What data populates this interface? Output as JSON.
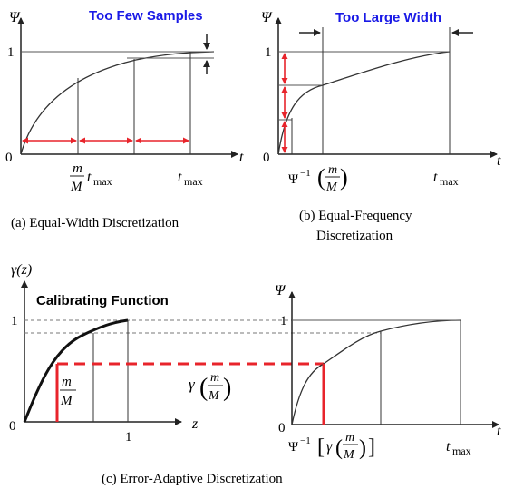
{
  "panel_a": {
    "callout": "Too Few Samples",
    "y_axis": "Ψ",
    "x_axis": "t",
    "origin": "0",
    "y_tick_1": "1",
    "frac_num": "m",
    "frac_den": "M",
    "tick_mid_sub": "t",
    "tick_mid_subscript": "max",
    "tick_right": "t",
    "tick_right_subscript": "max",
    "caption": "(a)  Equal-Width Discretization"
  },
  "panel_b": {
    "callout": "Too Large Width",
    "y_axis": "Ψ",
    "x_axis": "t",
    "origin": "0",
    "y_tick_1": "1",
    "tick_left_prefix": "Ψ",
    "tick_left_exp": "−1",
    "frac_num": "m",
    "frac_den": "M",
    "tick_right": "t",
    "tick_right_subscript": "max",
    "caption_line1": "(b) Equal-Frequency",
    "caption_line2": "Discretization"
  },
  "panel_c_left": {
    "y_axis": "γ(z)",
    "x_axis": "z",
    "origin": "0",
    "y_tick_1": "1",
    "x_tick_1": "1",
    "title": "Calibrating Function",
    "frac_num": "m",
    "frac_den": "M",
    "gamma_label": "γ",
    "gamma_frac_num": "m",
    "gamma_frac_den": "M"
  },
  "panel_c_right": {
    "y_axis": "Ψ",
    "x_axis": "t",
    "origin": "0",
    "y_tick_1": "1",
    "tick_left_prefix": "Ψ",
    "tick_left_exp": "−1",
    "tick_left_gamma": "γ",
    "frac_num": "m",
    "frac_den": "M",
    "tick_right": "t",
    "tick_right_subscript": "max",
    "caption": "(c) Error-Adaptive Discretization"
  },
  "colors": {
    "callout": "#1a1ae6",
    "red": "#e8242b",
    "axis": "#222222",
    "dashed": "#777777"
  }
}
